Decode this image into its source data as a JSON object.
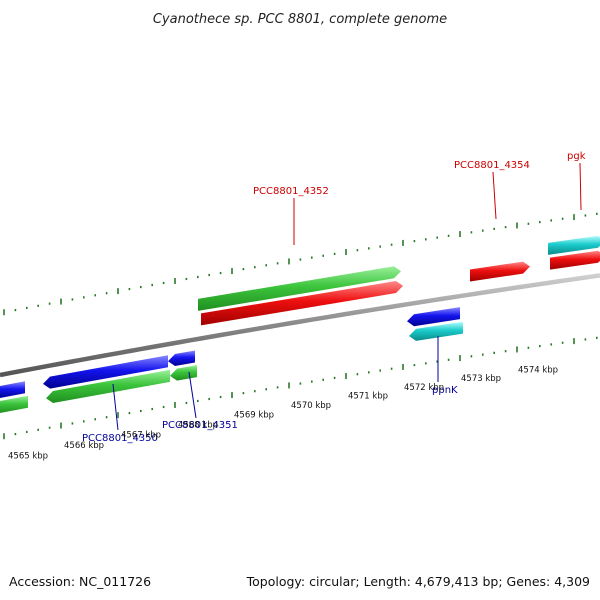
{
  "title": "Cyanothece sp. PCC 8801, complete genome",
  "footer": {
    "accession": "Accession: NC_011726",
    "topology": "Topology: circular; Length: 4,679,413 bp; Genes: 4,309"
  },
  "colors": {
    "green": "#3cc43c",
    "red": "#ee0f0f",
    "blue": "#1414ee",
    "cyan": "#1ccccc",
    "tick": "#2a7a2a",
    "backbone": "#888888",
    "label_red": "#cc0000",
    "label_blue": "#000099"
  },
  "scale_labels": [
    "4565 kbp",
    "4566 kbp",
    "4567 kbp",
    "4568 kbp",
    "4569 kbp",
    "4570 kbp",
    "4571 kbp",
    "4572 kbp",
    "4573 kbp",
    "4574 kbp"
  ],
  "gene_labels": [
    {
      "text": "PCC8801_4352",
      "strand": "forward"
    },
    {
      "text": "PCC8801_4354",
      "strand": "forward"
    },
    {
      "text": "pgk",
      "strand": "forward"
    },
    {
      "text": "ppnK",
      "strand": "reverse"
    },
    {
      "text": "PCC8801_4350",
      "strand": "reverse"
    },
    {
      "text": "PCC8801_4351",
      "strand": "reverse"
    }
  ]
}
